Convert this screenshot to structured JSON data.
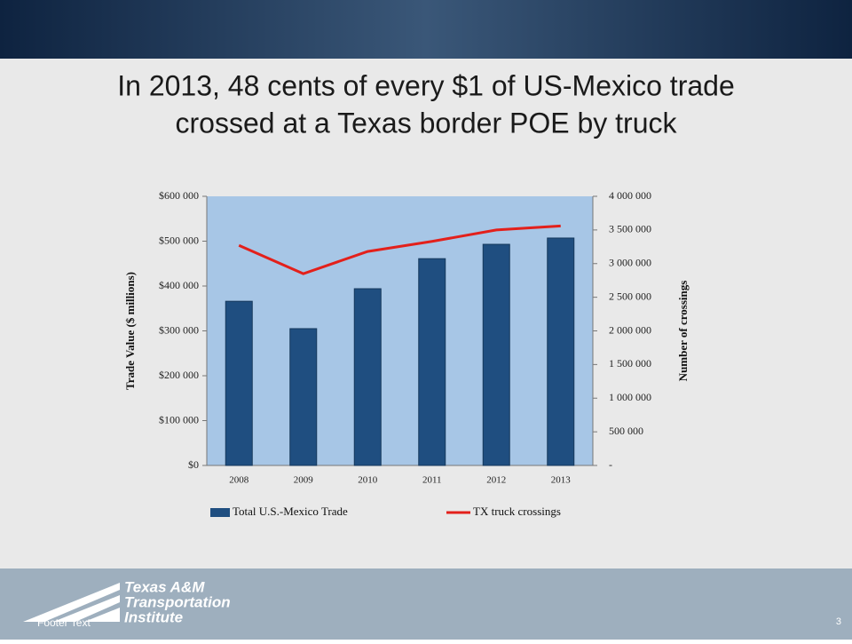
{
  "chart_data": {
    "type": "bar_line",
    "title": "In 2013, 48 cents of every $1 of US-Mexico trade crossed at a Texas border POE by truck",
    "categories": [
      "2008",
      "2009",
      "2010",
      "2011",
      "2012",
      "2013"
    ],
    "series": [
      {
        "name": "Total U.S.-Mexico Trade",
        "type": "bar",
        "color": "#1f4e80",
        "axis": "y",
        "values": [
          366000,
          305000,
          394000,
          461000,
          493000,
          507000
        ]
      },
      {
        "name": "TX truck crossings",
        "type": "line",
        "color": "#e3201b",
        "axis": "y2",
        "values": [
          3270000,
          2850000,
          3180000,
          3330000,
          3500000,
          3560000
        ]
      }
    ],
    "ylabel": "Trade Value ($ millions)",
    "y2label": "Number of crossings",
    "ylim": [
      0,
      600000
    ],
    "yticks": [
      {
        "value": 0,
        "label": "$0"
      },
      {
        "value": 100000,
        "label": "$100 000"
      },
      {
        "value": 200000,
        "label": "$200 000"
      },
      {
        "value": 300000,
        "label": "$300 000"
      },
      {
        "value": 400000,
        "label": "$400 000"
      },
      {
        "value": 500000,
        "label": "$500 000"
      },
      {
        "value": 600000,
        "label": "$600 000"
      }
    ],
    "y2lim": [
      0,
      4000000
    ],
    "y2ticks": [
      {
        "value": 0,
        "label": "-"
      },
      {
        "value": 500000,
        "label": "500 000"
      },
      {
        "value": 1000000,
        "label": "1 000 000"
      },
      {
        "value": 1500000,
        "label": "1 500 000"
      },
      {
        "value": 2000000,
        "label": "2 000 000"
      },
      {
        "value": 2500000,
        "label": "2 500 000"
      },
      {
        "value": 3000000,
        "label": "3 000 000"
      },
      {
        "value": 3500000,
        "label": "3 500 000"
      },
      {
        "value": 4000000,
        "label": "4 000 000"
      }
    ],
    "legend": "bottom"
  },
  "footer": {
    "logo": [
      "Texas A&M",
      "Transportation",
      "Institute"
    ],
    "text": "Footer Text",
    "page_number": "3"
  }
}
